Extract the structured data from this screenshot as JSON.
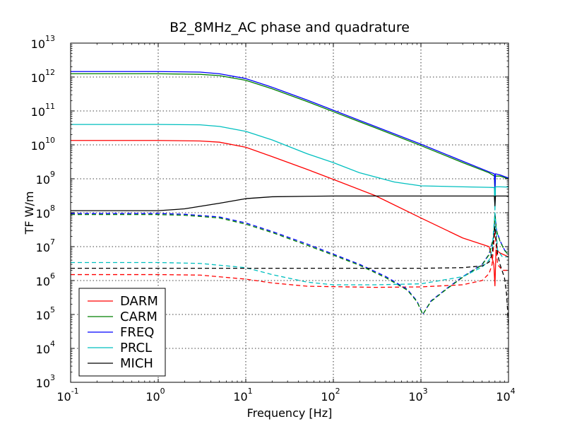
{
  "chart_data": {
    "type": "line",
    "title": "B2_8MHz_AC phase and quadrature",
    "xlabel": "Frequency [Hz]",
    "ylabel": "TF W/m",
    "xscale": "log",
    "yscale": "log",
    "xlim": [
      0.1,
      10000
    ],
    "ylim": [
      1000,
      10000000000000
    ],
    "x_ticks": [
      {
        "base": "10",
        "exp": "-1"
      },
      {
        "base": "10",
        "exp": "0"
      },
      {
        "base": "10",
        "exp": "1"
      },
      {
        "base": "10",
        "exp": "2"
      },
      {
        "base": "10",
        "exp": "3"
      },
      {
        "base": "10",
        "exp": "4"
      }
    ],
    "y_ticks": [
      {
        "base": "10",
        "exp": "3"
      },
      {
        "base": "10",
        "exp": "4"
      },
      {
        "base": "10",
        "exp": "5"
      },
      {
        "base": "10",
        "exp": "6"
      },
      {
        "base": "10",
        "exp": "7"
      },
      {
        "base": "10",
        "exp": "8"
      },
      {
        "base": "10",
        "exp": "9"
      },
      {
        "base": "10",
        "exp": "10"
      },
      {
        "base": "10",
        "exp": "11"
      },
      {
        "base": "10",
        "exp": "12"
      },
      {
        "base": "10",
        "exp": "13"
      }
    ],
    "grid": true,
    "legend_position": "lower-left",
    "series": [
      {
        "name": "DARM",
        "color": "#ff0000",
        "style": "solid",
        "x": [
          0.1,
          1,
          3,
          5,
          10,
          20,
          50,
          100,
          300,
          1000,
          3000,
          6000,
          6800,
          7000,
          7200,
          8000,
          10000
        ],
        "y": [
          13500000000.0,
          13500000000.0,
          13000000000.0,
          12000000000.0,
          8500000000.0,
          4500000000.0,
          1900000000.0,
          960000000.0,
          320000000.0,
          70000000.0,
          18000000.0,
          10000000.0,
          3000000.0,
          700000.0,
          8000000.0,
          6500000.0,
          5000000.0
        ]
      },
      {
        "name": "DARM",
        "color": "#ff0000",
        "style": "dashed",
        "x": [
          0.1,
          1,
          3,
          10,
          20,
          50,
          100,
          300,
          1000,
          3000,
          5000,
          6000,
          6500,
          7000,
          7500,
          8500,
          10000
        ],
        "y": [
          1500000.0,
          1500000.0,
          1450000.0,
          1100000.0,
          850000.0,
          680000.0,
          660000.0,
          630000.0,
          650000.0,
          750000.0,
          1000000.0,
          1600000.0,
          3000000.0,
          30000000.0,
          3000000.0,
          2000000.0,
          2000000.0
        ]
      },
      {
        "name": "CARM",
        "color": "#008000",
        "style": "solid",
        "x": [
          0.1,
          1,
          3,
          5,
          10,
          20,
          50,
          100,
          300,
          1000,
          3000,
          6000,
          6900,
          7000,
          7100,
          8000,
          10000
        ],
        "y": [
          1250000000000.0,
          1250000000000.0,
          1200000000000.0,
          1100000000000.0,
          800000000000.0,
          450000000000.0,
          190000000000.0,
          95000000000.0,
          32000000000.0,
          9500000000.0,
          3000000000.0,
          1500000000.0,
          1200000000.0,
          400000000.0,
          1200000000.0,
          1200000000.0,
          1000000000.0
        ]
      },
      {
        "name": "FREQ",
        "color": "#0000ff",
        "style": "solid",
        "x": [
          0.1,
          1,
          3,
          5,
          10,
          20,
          50,
          100,
          300,
          1000,
          3000,
          6000,
          6900,
          7000,
          7100,
          8000,
          10000
        ],
        "y": [
          1450000000000.0,
          1450000000000.0,
          1400000000000.0,
          1250000000000.0,
          900000000000.0,
          500000000000.0,
          210000000000.0,
          105000000000.0,
          35000000000.0,
          10500000000.0,
          3300000000.0,
          1600000000.0,
          1400000000.0,
          500000000.0,
          1400000000.0,
          1300000000.0,
          1050000000.0
        ]
      },
      {
        "name": "FREQ",
        "color": "#0000ff",
        "style": "dashed",
        "x": [
          0.1,
          1,
          2,
          5,
          10,
          20,
          50,
          100,
          200,
          400,
          700,
          900,
          1050,
          1300,
          2000,
          3000,
          5000,
          6000,
          6800,
          7000,
          7300,
          8000,
          9000,
          10000
        ],
        "y": [
          95000000.0,
          95000000.0,
          90000000.0,
          75000000.0,
          50000000.0,
          28000000.0,
          12000000.0,
          6000000.0,
          3000000.0,
          1300000.0,
          550000.0,
          250000.0,
          100000.0,
          250000.0,
          600000.0,
          1300000.0,
          3000000.0,
          6000000.0,
          20000000.0,
          100000000.0,
          30000000.0,
          15000000.0,
          8000000.0,
          6000000.0
        ]
      },
      {
        "name": "CARM",
        "color": "#008000",
        "style": "dashed",
        "x": [
          0.1,
          1,
          2,
          5,
          10,
          20,
          50,
          100,
          200,
          400,
          700,
          900,
          1050,
          1300,
          2000,
          3000,
          5000,
          6000,
          6800,
          7000,
          7300,
          8000,
          9000,
          10000
        ],
        "y": [
          88000000.0,
          88000000.0,
          84000000.0,
          70000000.0,
          46000000.0,
          26000000.0,
          11000000.0,
          5600000.0,
          2800000.0,
          1200000.0,
          520000.0,
          240000.0,
          100000.0,
          240000.0,
          580000.0,
          1250000.0,
          2900000.0,
          5800000.0,
          19000000.0,
          95000000.0,
          29000000.0,
          14500000.0,
          7700000.0,
          5800000.0
        ]
      },
      {
        "name": "PRCL",
        "color": "#00bfbf",
        "style": "solid",
        "x": [
          0.1,
          1,
          3,
          5,
          10,
          20,
          50,
          100,
          200,
          500,
          1000,
          3000,
          6000,
          6900,
          7000,
          7100,
          8000,
          10000
        ],
        "y": [
          40000000000.0,
          40000000000.0,
          39000000000.0,
          35000000000.0,
          25000000000.0,
          14000000000.0,
          5500000000.0,
          3000000000.0,
          1500000000.0,
          800000000.0,
          620000000.0,
          580000000.0,
          560000000.0,
          550000000.0,
          120000000.0,
          580000000.0,
          580000000.0,
          570000000.0
        ]
      },
      {
        "name": "PRCL",
        "color": "#00bfbf",
        "style": "dashed",
        "x": [
          0.1,
          1,
          3,
          10,
          20,
          50,
          100,
          300,
          1000,
          3000,
          5000,
          6000,
          6500,
          7000,
          7500,
          8500,
          10000
        ],
        "y": [
          3400000.0,
          3400000.0,
          3200000.0,
          2400000.0,
          1500000.0,
          900000.0,
          750000.0,
          750000.0,
          800000.0,
          1300000.0,
          2500000.0,
          4000000.0,
          8000000.0,
          100000000.0,
          8000000.0,
          5000000.0,
          5000000.0
        ]
      },
      {
        "name": "MICH",
        "color": "#000000",
        "style": "solid",
        "x": [
          0.1,
          1,
          2,
          5,
          10,
          20,
          50,
          100,
          500,
          1000,
          5000,
          6900,
          7000,
          7100,
          10000
        ],
        "y": [
          115000000.0,
          115000000.0,
          130000000.0,
          190000000.0,
          260000000.0,
          295000000.0,
          305000000.0,
          310000000.0,
          310000000.0,
          310000000.0,
          310000000.0,
          310000000.0,
          160000000.0,
          310000000.0,
          310000000.0
        ]
      },
      {
        "name": "MICH",
        "color": "#000000",
        "style": "dashed",
        "x": [
          0.1,
          1,
          3,
          10,
          100,
          1000,
          3000,
          5000,
          6000,
          6500,
          7000,
          7500,
          8000,
          9000,
          9500,
          10000
        ],
        "y": [
          2300000.0,
          2300000.0,
          2300000.0,
          2300000.0,
          2300000.0,
          2300000.0,
          2400000.0,
          2700000.0,
          3500000.0,
          6000000.0,
          40000000.0,
          6000000.0,
          3000000.0,
          1200000.0,
          400000.0,
          50000.0
        ]
      }
    ],
    "legend": [
      {
        "name": "DARM",
        "color": "#ff0000"
      },
      {
        "name": "CARM",
        "color": "#008000"
      },
      {
        "name": "FREQ",
        "color": "#0000ff"
      },
      {
        "name": "PRCL",
        "color": "#00bfbf"
      },
      {
        "name": "MICH",
        "color": "#000000"
      }
    ]
  }
}
